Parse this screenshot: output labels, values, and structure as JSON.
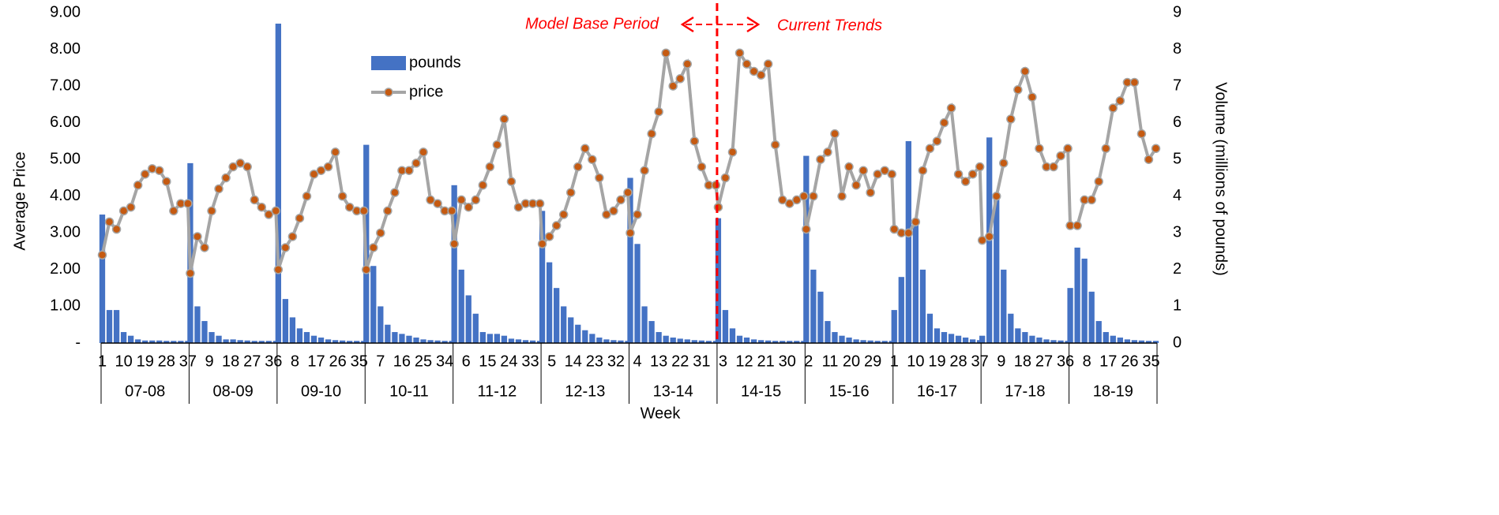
{
  "chart_data": {
    "type": "bar_line_combo",
    "y_label": "Average Price",
    "y2_label": "Volume (millions of pounds)",
    "x_label": "Week",
    "ylim": [
      0,
      9
    ],
    "yticks": [
      {
        "value": 0,
        "label": "-"
      },
      {
        "value": 1,
        "label": "1.00"
      },
      {
        "value": 2,
        "label": "2.00"
      },
      {
        "value": 3,
        "label": "3.00"
      },
      {
        "value": 4,
        "label": "4.00"
      },
      {
        "value": 5,
        "label": "5.00"
      },
      {
        "value": 6,
        "label": "6.00"
      },
      {
        "value": 7,
        "label": "7.00"
      },
      {
        "value": 8,
        "label": "8.00"
      },
      {
        "value": 9,
        "label": "9.00"
      }
    ],
    "y2lim": [
      0,
      9
    ],
    "y2ticks": [
      0,
      1,
      2,
      3,
      4,
      5,
      6,
      7,
      8,
      9
    ],
    "xlim": [
      1,
      37
    ],
    "series": [
      {
        "name": "pounds",
        "color": "#4472c4",
        "axis": "y2"
      },
      {
        "name": "price",
        "color": "#a5a5a5",
        "marker_color": "#c55a11"
      }
    ],
    "weeks": [
      1,
      4,
      7,
      10,
      13,
      16,
      19,
      22,
      25,
      28,
      31,
      34,
      37
    ],
    "seasons": [
      {
        "label": "07-08",
        "week_ticks": [
          1,
          10,
          19,
          28,
          37
        ],
        "pounds": [
          3.5,
          0.9,
          0.9,
          0.3,
          0.2,
          0.1,
          0.07,
          0.07,
          0.07,
          0.06,
          0.06,
          0.06,
          0.06
        ],
        "price": [
          2.4,
          3.3,
          3.1,
          3.6,
          3.7,
          4.3,
          4.6,
          4.75,
          4.7,
          4.4,
          3.6,
          3.8,
          3.8
        ]
      },
      {
        "label": "08-09",
        "week_ticks": [
          9,
          18,
          27,
          36
        ],
        "pounds": [
          4.9,
          1.0,
          0.6,
          0.3,
          0.2,
          0.1,
          0.1,
          0.08,
          0.07,
          0.06,
          0.06,
          0.06,
          0.06
        ],
        "price": [
          1.9,
          2.9,
          2.6,
          3.6,
          4.2,
          4.5,
          4.8,
          4.9,
          4.8,
          3.9,
          3.7,
          3.5,
          3.6
        ]
      },
      {
        "label": "09-10",
        "week_ticks": [
          8,
          17,
          26,
          35
        ],
        "pounds": [
          8.7,
          1.2,
          0.7,
          0.4,
          0.3,
          0.2,
          0.15,
          0.1,
          0.08,
          0.07,
          0.06,
          0.06,
          0.06
        ],
        "price": [
          2.0,
          2.6,
          2.9,
          3.4,
          4.0,
          4.6,
          4.7,
          4.8,
          5.2,
          4.0,
          3.7,
          3.6,
          3.6
        ]
      },
      {
        "label": "10-11",
        "week_ticks": [
          7,
          16,
          25,
          34
        ],
        "pounds": [
          5.4,
          2.1,
          1.0,
          0.5,
          0.3,
          0.25,
          0.2,
          0.15,
          0.1,
          0.08,
          0.07,
          0.06,
          0.06
        ],
        "price": [
          2.0,
          2.6,
          3.0,
          3.6,
          4.1,
          4.7,
          4.7,
          4.9,
          5.2,
          3.9,
          3.8,
          3.6,
          3.6
        ]
      },
      {
        "label": "11-12",
        "week_ticks": [
          6,
          15,
          24,
          33
        ],
        "pounds": [
          4.3,
          2.0,
          1.3,
          0.8,
          0.3,
          0.25,
          0.25,
          0.2,
          0.12,
          0.1,
          0.08,
          0.07,
          0.06
        ],
        "price": [
          2.7,
          3.9,
          3.7,
          3.9,
          4.3,
          4.8,
          5.4,
          6.1,
          4.4,
          3.7,
          3.8,
          3.8,
          3.8
        ]
      },
      {
        "label": "12-13",
        "week_ticks": [
          5,
          14,
          23,
          32
        ],
        "pounds": [
          3.6,
          2.2,
          1.5,
          1.0,
          0.7,
          0.5,
          0.35,
          0.25,
          0.15,
          0.1,
          0.08,
          0.07,
          0.06
        ],
        "price": [
          2.7,
          2.9,
          3.2,
          3.5,
          4.1,
          4.8,
          5.3,
          5.0,
          4.5,
          3.5,
          3.6,
          3.9,
          4.1
        ]
      },
      {
        "label": "13-14",
        "week_ticks": [
          4,
          13,
          22,
          31
        ],
        "pounds": [
          4.5,
          2.7,
          1.0,
          0.6,
          0.3,
          0.2,
          0.15,
          0.12,
          0.1,
          0.08,
          0.07,
          0.06,
          0.06
        ],
        "price": [
          3.0,
          3.5,
          4.7,
          5.7,
          6.3,
          7.9,
          7.0,
          7.2,
          7.6,
          5.5,
          4.8,
          4.3,
          4.3
        ]
      },
      {
        "label": "14-15",
        "week_ticks": [
          3,
          12,
          21,
          30
        ],
        "pounds": [
          3.4,
          0.9,
          0.4,
          0.2,
          0.15,
          0.1,
          0.08,
          0.07,
          0.06,
          0.06,
          0.06,
          0.06,
          0.06
        ],
        "price": [
          3.7,
          4.5,
          5.2,
          7.9,
          7.6,
          7.4,
          7.3,
          7.6,
          5.4,
          3.9,
          3.8,
          3.9,
          4.0
        ]
      },
      {
        "label": "15-16",
        "week_ticks": [
          2,
          11,
          20,
          29
        ],
        "pounds": [
          5.1,
          2.0,
          1.4,
          0.6,
          0.3,
          0.2,
          0.15,
          0.1,
          0.08,
          0.07,
          0.06,
          0.06,
          0.06
        ],
        "price": [
          3.1,
          4.0,
          5.0,
          5.2,
          5.7,
          4.0,
          4.8,
          4.3,
          4.7,
          4.1,
          4.6,
          4.7,
          4.6
        ]
      },
      {
        "label": "16-17",
        "week_ticks": [
          1,
          10,
          19,
          28,
          37
        ],
        "pounds": [
          0.9,
          1.8,
          5.5,
          3.3,
          2.0,
          0.8,
          0.4,
          0.3,
          0.25,
          0.2,
          0.15,
          0.1,
          0.08
        ],
        "price": [
          3.1,
          3.0,
          3.0,
          3.3,
          4.7,
          5.3,
          5.5,
          6.0,
          6.4,
          4.6,
          4.4,
          4.6,
          4.8
        ]
      },
      {
        "label": "17-18",
        "week_ticks": [
          9,
          18,
          27,
          36
        ],
        "pounds": [
          0.2,
          5.6,
          4.0,
          2.0,
          0.8,
          0.4,
          0.3,
          0.2,
          0.15,
          0.1,
          0.08,
          0.07,
          0.06
        ],
        "price": [
          2.8,
          2.9,
          4.0,
          4.9,
          6.1,
          6.9,
          7.4,
          6.7,
          5.3,
          4.8,
          4.8,
          5.1,
          5.3
        ]
      },
      {
        "label": "18-19",
        "week_ticks": [
          8,
          17,
          26,
          35
        ],
        "pounds": [
          1.5,
          2.6,
          2.3,
          1.4,
          0.6,
          0.3,
          0.2,
          0.15,
          0.1,
          0.08,
          0.07,
          0.06,
          0.06
        ],
        "price": [
          3.2,
          3.2,
          3.9,
          3.9,
          4.4,
          5.3,
          6.4,
          6.6,
          7.1,
          7.1,
          5.7,
          5.0,
          5.3
        ]
      }
    ],
    "divider_season": 7,
    "divider_color": "#ff0000",
    "annotations": [
      "Model Base Period",
      "Current Trends"
    ]
  }
}
